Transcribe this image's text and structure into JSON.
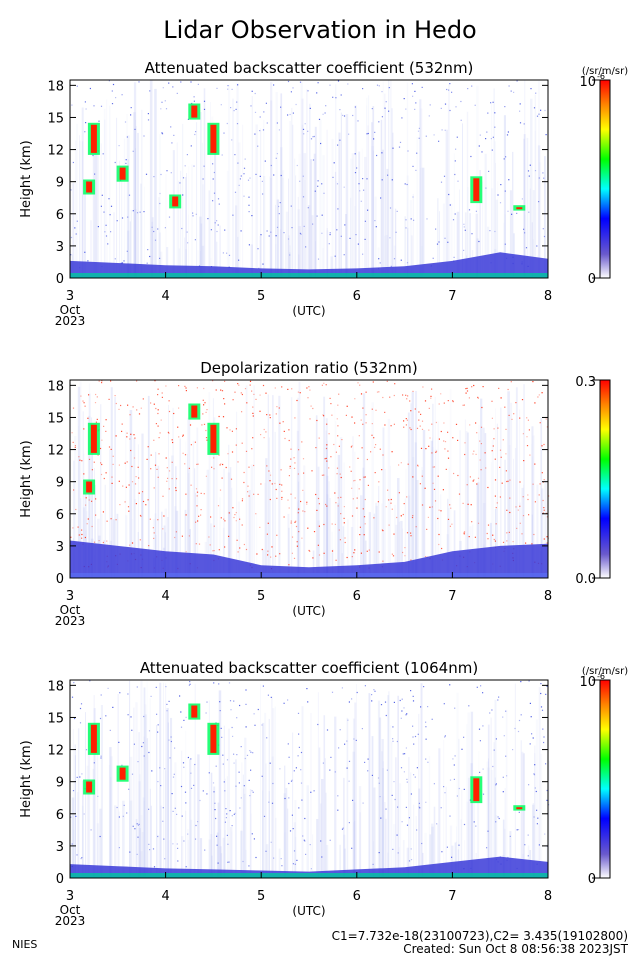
{
  "title": "Lidar Observation in Hedo",
  "footer": {
    "left": "NIES",
    "line1": "C1=7.732e-18(23100723),C2= 3.435(19102800)",
    "line2": "Created: Sun Oct  8 08:56:38 2023JST"
  },
  "colors": {
    "scale": [
      "#ffffff",
      "#6a5acd",
      "#0000ff",
      "#00ffff",
      "#00ff00",
      "#ffff00",
      "#ff8000",
      "#ff0000"
    ],
    "clear_air": "#c8cef5",
    "boundary_layer": "#3a3ad8",
    "frame": "#000000"
  },
  "chart_data": [
    {
      "type": "heatmap",
      "title": "Attenuated backscatter coefficient (532nm)",
      "ylabel": "Height (km)",
      "xlabel": "(UTC)",
      "x_ticks": [
        "3",
        "4",
        "5",
        "6",
        "7",
        "8"
      ],
      "x_start_sub": [
        "Oct",
        "2023"
      ],
      "xlim": [
        3,
        8
      ],
      "y_ticks": [
        0,
        3,
        6,
        9,
        12,
        15,
        18
      ],
      "ylim": [
        0,
        18.5
      ],
      "colorbar": {
        "unit": "(/sr/m/sr)",
        "top": "10",
        "top_sup": "-6",
        "bottom": "0"
      },
      "boundary_layer_top_km": [
        1.6,
        1.4,
        1.2,
        1.1,
        0.9,
        0.8,
        0.9,
        1.1,
        1.6,
        2.4,
        1.8
      ],
      "clouds": [
        {
          "day": 3.25,
          "base_km": 11.5,
          "top_km": 14.5
        },
        {
          "day": 3.2,
          "base_km": 7.8,
          "top_km": 9.2
        },
        {
          "day": 3.55,
          "base_km": 9.0,
          "top_km": 10.5
        },
        {
          "day": 4.3,
          "base_km": 14.8,
          "top_km": 16.3
        },
        {
          "day": 4.5,
          "base_km": 11.5,
          "top_km": 14.5
        },
        {
          "day": 4.1,
          "base_km": 6.5,
          "top_km": 7.8
        },
        {
          "day": 7.25,
          "base_km": 7.0,
          "top_km": 9.5
        },
        {
          "day": 7.7,
          "base_km": 6.3,
          "top_km": 6.8
        }
      ]
    },
    {
      "type": "heatmap",
      "title": "Depolarization ratio (532nm)",
      "ylabel": "Height (km)",
      "xlabel": "(UTC)",
      "x_ticks": [
        "3",
        "4",
        "5",
        "6",
        "7",
        "8"
      ],
      "x_start_sub": [
        "Oct",
        "2023"
      ],
      "xlim": [
        3,
        8
      ],
      "y_ticks": [
        0,
        3,
        6,
        9,
        12,
        15,
        18
      ],
      "ylim": [
        0,
        18.5
      ],
      "colorbar": {
        "unit": "",
        "top": "0.3",
        "top_sup": "",
        "bottom": "0.0"
      },
      "boundary_layer_top_km": [
        3.5,
        3.0,
        2.5,
        2.2,
        1.2,
        1.0,
        1.2,
        1.5,
        2.5,
        3.0,
        3.2
      ],
      "clouds": [
        {
          "day": 3.25,
          "base_km": 11.5,
          "top_km": 14.5
        },
        {
          "day": 4.3,
          "base_km": 14.8,
          "top_km": 16.3
        },
        {
          "day": 4.5,
          "base_km": 11.5,
          "top_km": 14.5
        },
        {
          "day": 3.2,
          "base_km": 7.8,
          "top_km": 9.2
        }
      ]
    },
    {
      "type": "heatmap",
      "title": "Attenuated backscatter coefficient (1064nm)",
      "ylabel": "Height (km)",
      "xlabel": "(UTC)",
      "x_ticks": [
        "3",
        "4",
        "5",
        "6",
        "7",
        "8"
      ],
      "x_start_sub": [
        "Oct",
        "2023"
      ],
      "xlim": [
        3,
        8
      ],
      "y_ticks": [
        0,
        3,
        6,
        9,
        12,
        15,
        18
      ],
      "ylim": [
        0,
        18.5
      ],
      "colorbar": {
        "unit": "(/sr/m/sr)",
        "top": "10",
        "top_sup": "-6",
        "bottom": "0"
      },
      "boundary_layer_top_km": [
        1.3,
        1.1,
        0.9,
        0.8,
        0.7,
        0.6,
        0.8,
        1.0,
        1.5,
        2.0,
        1.5
      ],
      "clouds": [
        {
          "day": 3.25,
          "base_km": 11.5,
          "top_km": 14.5
        },
        {
          "day": 3.2,
          "base_km": 7.8,
          "top_km": 9.2
        },
        {
          "day": 3.55,
          "base_km": 9.0,
          "top_km": 10.5
        },
        {
          "day": 4.3,
          "base_km": 14.8,
          "top_km": 16.3
        },
        {
          "day": 4.5,
          "base_km": 11.5,
          "top_km": 14.5
        },
        {
          "day": 7.25,
          "base_km": 7.0,
          "top_km": 9.5
        },
        {
          "day": 7.7,
          "base_km": 6.3,
          "top_km": 6.8
        }
      ]
    }
  ]
}
